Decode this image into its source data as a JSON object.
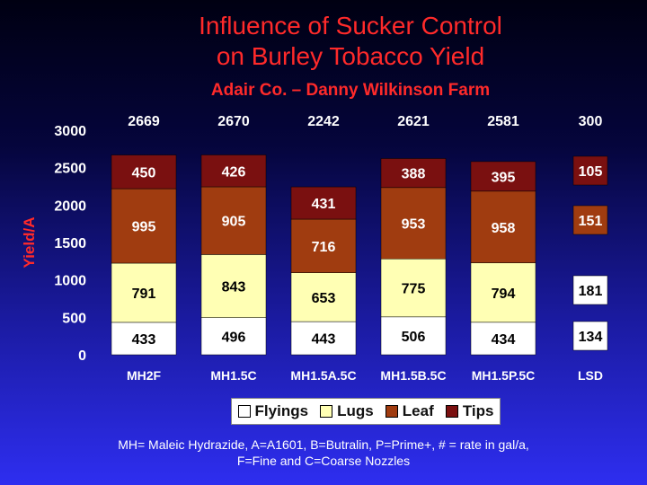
{
  "chart_data": {
    "type": "stacked-bar",
    "title_line1": "Influence of Sucker Control",
    "title_line2": "on Burley Tobacco Yield",
    "subtitle": "Adair Co. – Danny Wilkinson Farm",
    "ylabel": "Yield/A",
    "ylim": [
      0,
      3000
    ],
    "yticks": [
      0,
      500,
      1000,
      1500,
      2000,
      2500,
      3000
    ],
    "categories": [
      "MH2F",
      "MH1.5C",
      "MH1.5A.5C",
      "MH1.5B.5C",
      "MH1.5P.5C"
    ],
    "totals": [
      "2669",
      "2670",
      "2242",
      "2621",
      "2581"
    ],
    "series": [
      {
        "name": "Flyings",
        "color": "#ffffff",
        "values": [
          433,
          496,
          443,
          506,
          434
        ]
      },
      {
        "name": "Lugs",
        "color": "#ffffb4",
        "values": [
          791,
          843,
          653,
          775,
          794
        ]
      },
      {
        "name": "Leaf",
        "color": "#a03c10",
        "values": [
          995,
          905,
          716,
          953,
          958
        ]
      },
      {
        "name": "Tips",
        "color": "#7a1010",
        "values": [
          450,
          426,
          431,
          388,
          395
        ]
      }
    ],
    "lsd": {
      "label": "LSD",
      "total": "300",
      "values": [
        "134",
        "181",
        "151",
        "105"
      ]
    },
    "legend_position": "bottom",
    "grid": false
  },
  "footnote_line1": "MH= Maleic Hydrazide, A=A1601, B=Butralin, P=Prime+, # = rate in gal/a,",
  "footnote_line2": "F=Fine and C=Coarse Nozzles"
}
